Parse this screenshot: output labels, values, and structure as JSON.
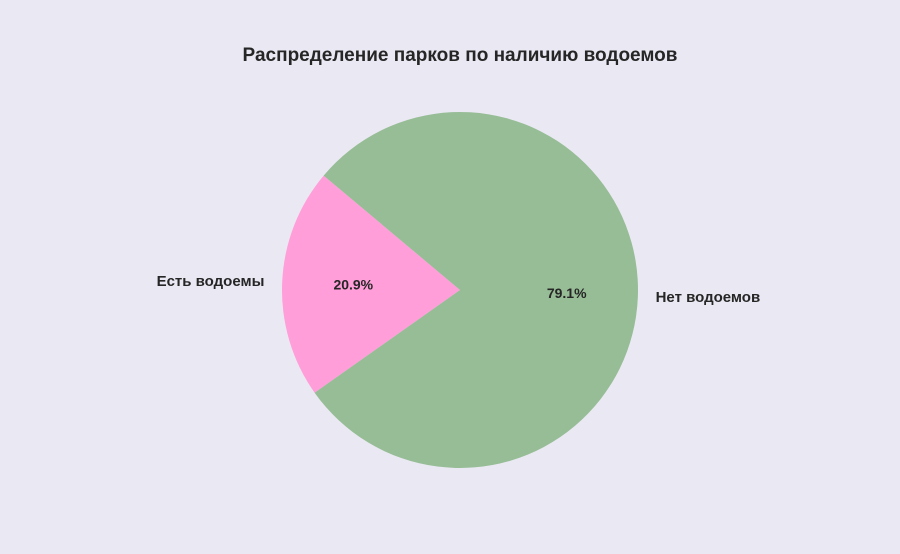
{
  "chart_data": {
    "type": "pie",
    "title": "Распределение парков по наличию водоемов",
    "slices": [
      {
        "label": "Есть водоемы",
        "value": 20.9,
        "pct_label": "20.9%",
        "color": "#ff9ed9"
      },
      {
        "label": "Нет водоемов",
        "value": 79.1,
        "pct_label": "79.1%",
        "color": "#97bd96"
      }
    ]
  },
  "colors": {
    "background": "#eae9f3"
  }
}
